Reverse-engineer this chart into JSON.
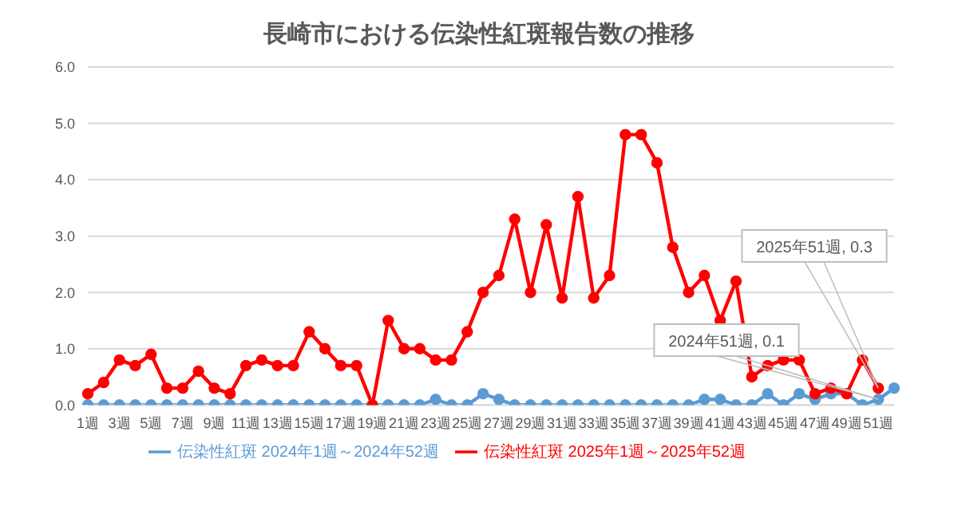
{
  "chart_data": {
    "type": "line",
    "title": "長崎市における伝染性紅斑報告数の推移",
    "categories": [
      "1週",
      null,
      "3週",
      null,
      "5週",
      null,
      "7週",
      null,
      "9週",
      null,
      "11週",
      null,
      "13週",
      null,
      "15週",
      null,
      "17週",
      null,
      "19週",
      null,
      "21週",
      null,
      "23週",
      null,
      "25週",
      null,
      "27週",
      null,
      "29週",
      null,
      "31週",
      null,
      "33週",
      null,
      "35週",
      null,
      "37週",
      null,
      "39週",
      null,
      "41週",
      null,
      "43週",
      null,
      "45週",
      null,
      "47週",
      null,
      "49週",
      null,
      "51週",
      null
    ],
    "series": [
      {
        "name": "伝染性紅斑 2024年1週～2024年52週",
        "color": "#5b9bd5",
        "values": [
          0,
          0,
          0,
          0,
          0,
          0,
          0,
          0,
          0,
          0,
          0,
          0,
          0,
          0,
          0,
          0,
          0,
          0,
          0,
          0,
          0,
          0,
          0.1,
          0,
          0,
          0.2,
          0.1,
          0,
          0,
          0,
          0,
          0,
          0,
          0,
          0,
          0,
          0,
          0,
          0,
          0.1,
          0.1,
          0,
          0,
          0.2,
          0,
          0.2,
          0.1,
          0.2,
          0.2,
          0,
          0.1,
          0.3
        ]
      },
      {
        "name": "伝染性紅斑 2025年1週～2025年52週",
        "color": "#ff0000",
        "values": [
          0.2,
          0.4,
          0.8,
          0.7,
          0.9,
          0.3,
          0.3,
          0.6,
          0.3,
          0.2,
          0.7,
          0.8,
          0.7,
          0.7,
          1.3,
          1.0,
          0.7,
          0.7,
          0,
          1.5,
          1.0,
          1.0,
          0.8,
          0.8,
          1.3,
          2.0,
          2.3,
          3.3,
          2.0,
          3.2,
          1.9,
          3.7,
          1.9,
          2.3,
          4.8,
          4.8,
          4.3,
          2.8,
          2.0,
          2.3,
          1.5,
          2.2,
          0.5,
          0.7,
          0.8,
          0.8,
          0.2,
          0.3,
          0.2,
          0.8,
          0.3,
          null
        ]
      }
    ],
    "ylim": [
      0,
      6
    ],
    "yticks": [
      {
        "value": 0,
        "label": "0.0"
      },
      {
        "value": 1,
        "label": "1.0"
      },
      {
        "value": 2,
        "label": "2.0"
      },
      {
        "value": 3,
        "label": "3.0"
      },
      {
        "value": 4,
        "label": "4.0"
      },
      {
        "value": 5,
        "label": "5.0"
      },
      {
        "value": 6,
        "label": "6.0"
      }
    ],
    "grid": "y",
    "legend": "bottom",
    "marker": "circle",
    "line_style": "solid",
    "annotations": [
      "2024年51週, 0.1",
      "2025年51週, 0.3"
    ]
  }
}
